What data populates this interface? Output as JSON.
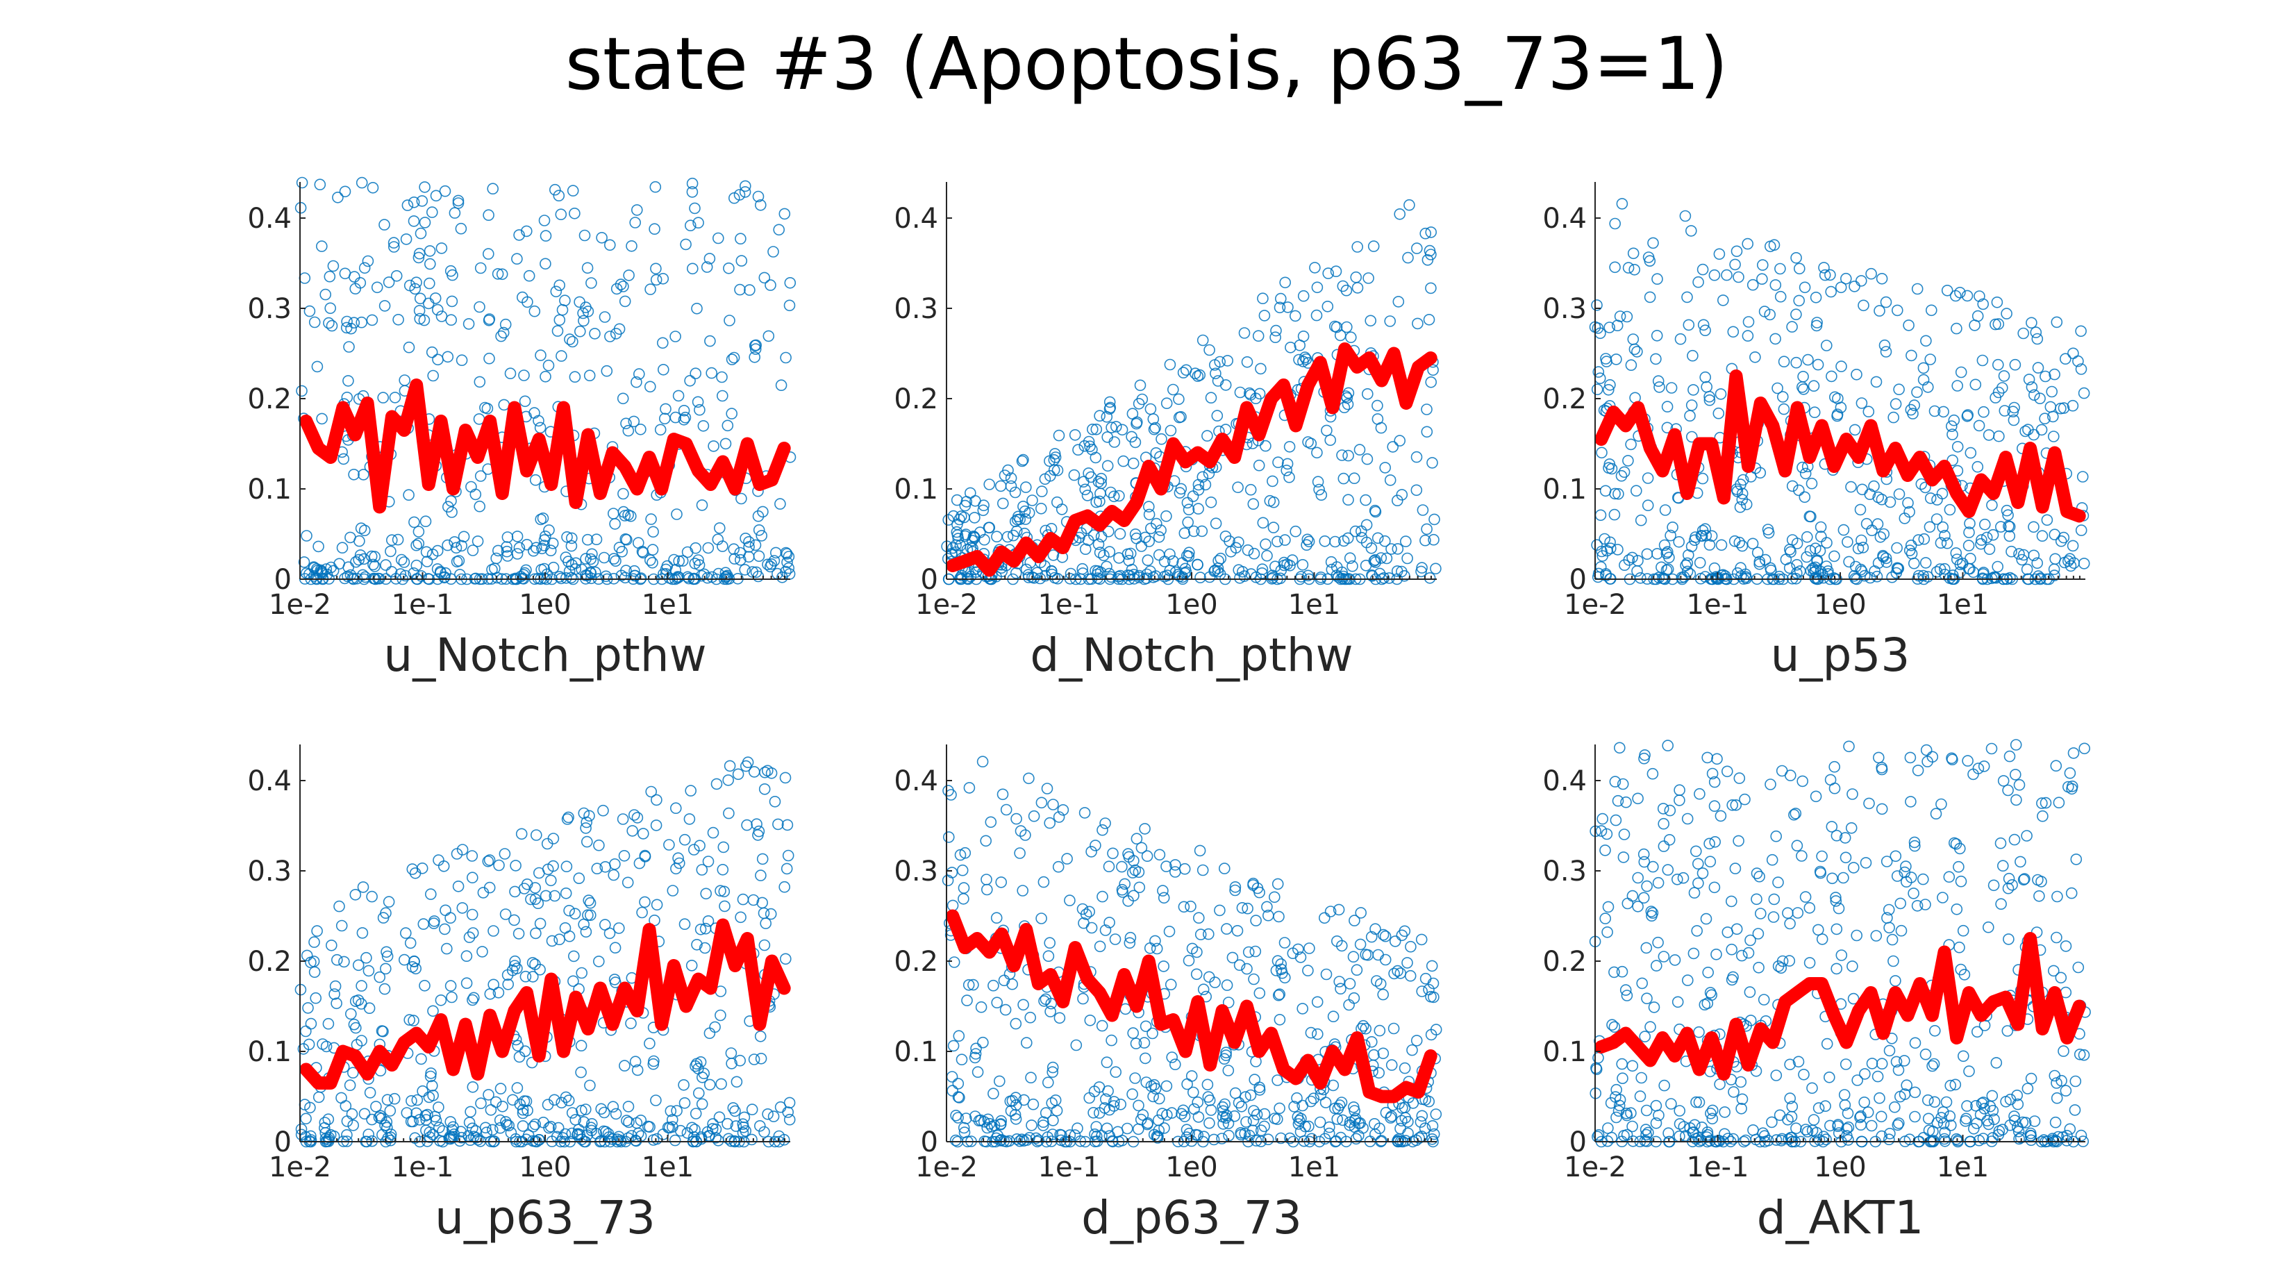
{
  "figure_title": "state #3 (Apoptosis, p63_73=1)",
  "colors": {
    "scatter": "#0072BD",
    "trend": "#FF0000",
    "axis": "#262626"
  },
  "chart_data": [
    {
      "type": "scatter",
      "title": "",
      "xlabel": "u_Notch_pthw",
      "ylabel": "",
      "xscale": "log",
      "xlim": [
        0.01,
        100
      ],
      "ylim": [
        0,
        0.44
      ],
      "xticks": [
        "1e-2",
        "1e-1",
        "1e0",
        "1e1"
      ],
      "yticks": [
        "0",
        "0.1",
        "0.2",
        "0.3",
        "0.4"
      ],
      "scatter_pattern": "uniform",
      "trend": {
        "name": "",
        "y": [
          0.175,
          0.145,
          0.135,
          0.19,
          0.16,
          0.195,
          0.08,
          0.18,
          0.165,
          0.215,
          0.105,
          0.175,
          0.1,
          0.165,
          0.135,
          0.175,
          0.095,
          0.19,
          0.12,
          0.155,
          0.105,
          0.19,
          0.085,
          0.16,
          0.095,
          0.14,
          0.125,
          0.1,
          0.135,
          0.1,
          0.155,
          0.15,
          0.12,
          0.105,
          0.13,
          0.1,
          0.15,
          0.105,
          0.11,
          0.145
        ]
      }
    },
    {
      "type": "scatter",
      "title": "",
      "xlabel": "d_Notch_pthw",
      "ylabel": "",
      "xscale": "log",
      "xlim": [
        0.01,
        100
      ],
      "ylim": [
        0,
        0.44
      ],
      "xticks": [
        "1e-2",
        "1e-1",
        "1e0",
        "1e1"
      ],
      "yticks": [
        "0",
        "0.1",
        "0.2",
        "0.3",
        "0.4"
      ],
      "scatter_pattern": "rising",
      "trend": {
        "name": "",
        "y": [
          0.015,
          0.02,
          0.025,
          0.01,
          0.03,
          0.02,
          0.04,
          0.025,
          0.045,
          0.035,
          0.065,
          0.07,
          0.06,
          0.075,
          0.065,
          0.085,
          0.125,
          0.1,
          0.15,
          0.13,
          0.14,
          0.13,
          0.155,
          0.135,
          0.19,
          0.16,
          0.2,
          0.215,
          0.17,
          0.215,
          0.24,
          0.19,
          0.255,
          0.235,
          0.245,
          0.22,
          0.25,
          0.195,
          0.235,
          0.245
        ]
      }
    },
    {
      "type": "scatter",
      "title": "",
      "xlabel": "u_p53",
      "ylabel": "",
      "xscale": "log",
      "xlim": [
        0.01,
        100
      ],
      "ylim": [
        0,
        0.44
      ],
      "xticks": [
        "1e-2",
        "1e-1",
        "1e0",
        "1e1"
      ],
      "yticks": [
        "0",
        "0.1",
        "0.2",
        "0.3",
        "0.4"
      ],
      "scatter_pattern": "falling-mild",
      "trend": {
        "name": "",
        "y": [
          0.155,
          0.185,
          0.17,
          0.19,
          0.145,
          0.12,
          0.16,
          0.095,
          0.15,
          0.15,
          0.09,
          0.225,
          0.125,
          0.195,
          0.17,
          0.12,
          0.19,
          0.135,
          0.17,
          0.125,
          0.155,
          0.135,
          0.17,
          0.12,
          0.145,
          0.115,
          0.135,
          0.11,
          0.125,
          0.095,
          0.075,
          0.11,
          0.095,
          0.135,
          0.085,
          0.145,
          0.08,
          0.14,
          0.075,
          0.07
        ]
      }
    },
    {
      "type": "scatter",
      "title": "",
      "xlabel": "u_p63_73",
      "ylabel": "",
      "xscale": "log",
      "xlim": [
        0.01,
        100
      ],
      "ylim": [
        0,
        0.44
      ],
      "xticks": [
        "1e-2",
        "1e-1",
        "1e0",
        "1e1"
      ],
      "yticks": [
        "0",
        "0.1",
        "0.2",
        "0.3",
        "0.4"
      ],
      "scatter_pattern": "rising-mild",
      "trend": {
        "name": "",
        "y": [
          0.08,
          0.065,
          0.065,
          0.1,
          0.095,
          0.075,
          0.1,
          0.085,
          0.11,
          0.12,
          0.105,
          0.135,
          0.08,
          0.13,
          0.075,
          0.14,
          0.1,
          0.145,
          0.165,
          0.095,
          0.18,
          0.1,
          0.16,
          0.125,
          0.17,
          0.13,
          0.17,
          0.145,
          0.235,
          0.13,
          0.195,
          0.15,
          0.18,
          0.17,
          0.24,
          0.195,
          0.225,
          0.13,
          0.2,
          0.17
        ]
      }
    },
    {
      "type": "scatter",
      "title": "",
      "xlabel": "d_p63_73",
      "ylabel": "",
      "xscale": "log",
      "xlim": [
        0.01,
        100
      ],
      "ylim": [
        0,
        0.44
      ],
      "xticks": [
        "1e-2",
        "1e-1",
        "1e0",
        "1e1"
      ],
      "yticks": [
        "0",
        "0.1",
        "0.2",
        "0.3",
        "0.4"
      ],
      "scatter_pattern": "falling",
      "trend": {
        "name": "",
        "y": [
          0.25,
          0.215,
          0.225,
          0.21,
          0.23,
          0.195,
          0.235,
          0.175,
          0.185,
          0.155,
          0.215,
          0.18,
          0.165,
          0.14,
          0.185,
          0.15,
          0.2,
          0.13,
          0.135,
          0.1,
          0.155,
          0.085,
          0.145,
          0.11,
          0.15,
          0.1,
          0.12,
          0.08,
          0.07,
          0.09,
          0.065,
          0.1,
          0.08,
          0.115,
          0.055,
          0.05,
          0.05,
          0.06,
          0.055,
          0.095
        ]
      }
    },
    {
      "type": "scatter",
      "title": "",
      "xlabel": "d_AKT1",
      "ylabel": "",
      "xscale": "log",
      "xlim": [
        0.01,
        100
      ],
      "ylim": [
        0,
        0.44
      ],
      "xticks": [
        "1e-2",
        "1e-1",
        "1e0",
        "1e1"
      ],
      "yticks": [
        "0",
        "0.1",
        "0.2",
        "0.3",
        "0.4"
      ],
      "scatter_pattern": "uniform",
      "trend": {
        "name": "",
        "y": [
          0.105,
          0.11,
          0.12,
          0.105,
          0.09,
          0.115,
          0.095,
          0.12,
          0.08,
          0.115,
          0.075,
          0.13,
          0.085,
          0.125,
          0.11,
          0.155,
          0.165,
          0.175,
          0.175,
          0.14,
          0.11,
          0.145,
          0.165,
          0.12,
          0.165,
          0.14,
          0.175,
          0.14,
          0.21,
          0.115,
          0.165,
          0.14,
          0.155,
          0.16,
          0.13,
          0.225,
          0.125,
          0.165,
          0.115,
          0.15
        ]
      }
    }
  ]
}
